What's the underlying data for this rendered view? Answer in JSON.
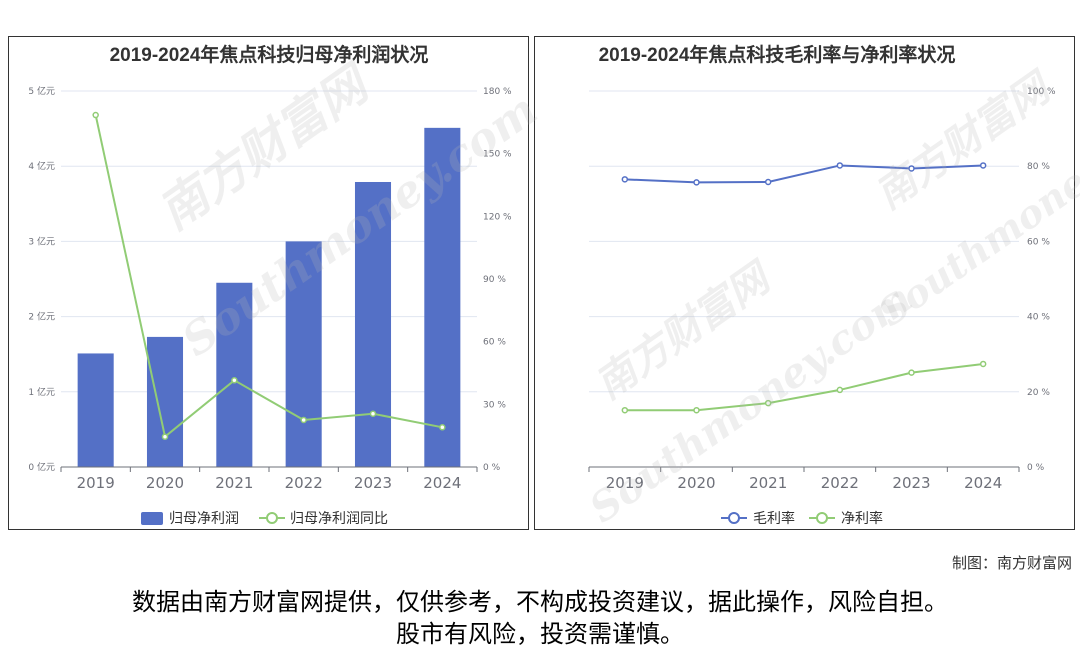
{
  "charts": {
    "left": {
      "title": "2019-2024年焦点科技归母净利润状况",
      "legend": [
        "归母净利润",
        "归母净利润同比"
      ]
    },
    "right": {
      "title": "2019-2024年焦点科技毛利率与净利率状况",
      "legend": [
        "毛利率",
        "净利率"
      ]
    }
  },
  "footer": {
    "credit": "制图：南方财富网",
    "disclaimer_line1": "数据由南方财富网提供，仅供参考，不构成投资建议，据此操作，风险自担。",
    "disclaimer_line2": "股市有风险，投资需谨慎。"
  },
  "watermark": {
    "text1": "南方财富网",
    "text2": "Southmoney.com"
  },
  "colors": {
    "bar": "#5470c6",
    "line_green": "#91cc75",
    "line_blue": "#5470c6",
    "grid": "#e0e6f1",
    "axis_text": "#6e7079"
  },
  "chart_data": [
    {
      "type": "bar",
      "title": "2019-2024年焦点科技归母净利润状况",
      "categories": [
        "2019",
        "2020",
        "2021",
        "2022",
        "2023",
        "2024"
      ],
      "y_left": {
        "ticks": [
          "0 亿元",
          "1 亿元",
          "2 亿元",
          "3 亿元",
          "4 亿元",
          "5 亿元"
        ],
        "range": [
          0,
          5
        ]
      },
      "y_right": {
        "ticks": [
          "0 %",
          "30 %",
          "60 %",
          "90 %",
          "120 %",
          "150 %",
          "180 %"
        ],
        "range": [
          0,
          180
        ]
      },
      "series": [
        {
          "name": "归母净利润",
          "type": "bar",
          "axis": "left",
          "values": [
            1.51,
            1.73,
            2.45,
            3.0,
            3.79,
            4.51
          ]
        },
        {
          "name": "归母净利润同比",
          "type": "line",
          "axis": "right",
          "values": [
            168.5,
            14.5,
            41.5,
            22.5,
            25.5,
            19.0
          ]
        }
      ],
      "grid": true,
      "legend_position": "bottom"
    },
    {
      "type": "line",
      "title": "2019-2024年焦点科技毛利率与净利率状况",
      "categories": [
        "2019",
        "2020",
        "2021",
        "2022",
        "2023",
        "2024"
      ],
      "y_right": {
        "ticks": [
          "0 %",
          "20 %",
          "40 %",
          "60 %",
          "80 %",
          "100 %"
        ],
        "range": [
          0,
          100
        ]
      },
      "series": [
        {
          "name": "毛利率",
          "values": [
            76.5,
            75.7,
            75.8,
            80.2,
            79.4,
            80.2
          ]
        },
        {
          "name": "净利率",
          "values": [
            15.1,
            15.1,
            17.0,
            20.5,
            25.1,
            27.4
          ]
        }
      ],
      "grid": true,
      "legend_position": "bottom"
    }
  ]
}
